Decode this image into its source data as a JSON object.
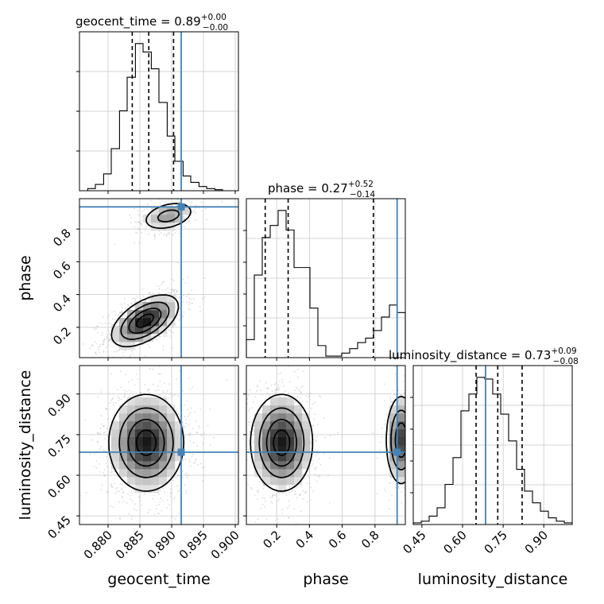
{
  "chart_data": {
    "type": "corner",
    "parameters": [
      "geocent_time",
      "phase",
      "luminosity_distance"
    ],
    "truth_color": "#4682b4",
    "contour_color": "#000000",
    "titles": [
      {
        "param": "geocent_time",
        "prefix": "geocent_time = ",
        "median": "0.89",
        "plus": "+0.00",
        "minus": "−0.00"
      },
      {
        "param": "phase",
        "prefix": "phase = ",
        "median": "0.27",
        "plus": "+0.52",
        "minus": "−0.14"
      },
      {
        "param": "luminosity_distance",
        "prefix": "luminosity_distance = ",
        "median": "0.73",
        "plus": "+0.09",
        "minus": "−0.08"
      }
    ],
    "axes": {
      "geocent_time": {
        "range": [
          0.8755,
          0.9005
        ],
        "ticks": [
          0.88,
          0.885,
          0.89,
          0.895,
          0.9
        ],
        "tick_labels": [
          "0.880",
          "0.885",
          "0.890",
          "0.895",
          "0.900"
        ],
        "label": "geocent_time"
      },
      "phase": {
        "range": [
          0.015,
          0.985
        ],
        "ticks": [
          0.2,
          0.4,
          0.6,
          0.8
        ],
        "tick_labels": [
          "0.2",
          "0.4",
          "0.6",
          "0.8"
        ],
        "label": "phase"
      },
      "luminosity_distance": {
        "range": [
          0.418,
          1.005
        ],
        "ticks": [
          0.45,
          0.6,
          0.75,
          0.9
        ],
        "tick_labels": [
          "0.45",
          "0.60",
          "0.75",
          "0.90"
        ],
        "label": "luminosity_distance"
      }
    },
    "truths": {
      "geocent_time": 0.8915,
      "phase": 0.935,
      "luminosity_distance": 0.685
    },
    "quantiles": {
      "geocent_time": [
        0.8838,
        0.8864,
        0.8903
      ],
      "phase": [
        0.13,
        0.27,
        0.79
      ],
      "luminosity_distance": [
        0.65,
        0.73,
        0.82
      ]
    },
    "histograms": {
      "geocent_time": {
        "edges": [
          0.8755,
          0.8768,
          0.878,
          0.8793,
          0.8805,
          0.8818,
          0.883,
          0.8843,
          0.8855,
          0.8868,
          0.888,
          0.8893,
          0.8905,
          0.8918,
          0.893,
          0.8943,
          0.8955,
          0.8968,
          0.898,
          0.8993,
          0.9005
        ],
        "counts": [
          0,
          1,
          3,
          8,
          20,
          38,
          54,
          70,
          66,
          58,
          42,
          26,
          14,
          7,
          4,
          2,
          1,
          0.5,
          0,
          0
        ]
      },
      "phase": {
        "edges": [
          0.015,
          0.0635,
          0.112,
          0.1605,
          0.209,
          0.2575,
          0.306,
          0.3545,
          0.403,
          0.4515,
          0.5,
          0.5485,
          0.597,
          0.6455,
          0.694,
          0.7425,
          0.791,
          0.8395,
          0.888,
          0.9365,
          0.985
        ],
        "counts": [
          12,
          55,
          80,
          88,
          98,
          85,
          60,
          60,
          33,
          8,
          1,
          1,
          3,
          6,
          10,
          13,
          18,
          27,
          35,
          30
        ]
      },
      "luminosity_distance": {
        "edges": [
          0.418,
          0.4474,
          0.4767,
          0.5061,
          0.5354,
          0.5648,
          0.5941,
          0.6235,
          0.6528,
          0.6822,
          0.7115,
          0.7409,
          0.7702,
          0.7996,
          0.8289,
          0.8583,
          0.8876,
          0.917,
          0.9463,
          0.9757,
          1.005
        ],
        "counts": [
          1,
          2,
          5,
          10,
          24,
          40,
          68,
          78,
          88,
          87,
          78,
          66,
          50,
          33,
          20,
          13,
          8,
          4,
          2,
          1
        ]
      }
    },
    "density_2d": [
      {
        "x": "geocent_time",
        "y": "phase",
        "blobs": [
          {
            "mx": 0.8858,
            "my": 0.24,
            "sx": 0.0025,
            "sy": 0.075,
            "rho": 0.55,
            "w": 0.8
          },
          {
            "mx": 0.8895,
            "my": 0.88,
            "sx": 0.0021,
            "sy": 0.045,
            "rho": 0.35,
            "w": 0.2
          }
        ]
      },
      {
        "x": "geocent_time",
        "y": "luminosity_distance",
        "blobs": [
          {
            "mx": 0.886,
            "my": 0.72,
            "sx": 0.0028,
            "sy": 0.085,
            "rho": 0.0,
            "w": 1.0
          }
        ]
      },
      {
        "x": "phase",
        "y": "luminosity_distance",
        "blobs": [
          {
            "mx": 0.23,
            "my": 0.72,
            "sx": 0.09,
            "sy": 0.085,
            "rho": 0.0,
            "w": 0.72
          },
          {
            "mx": 0.96,
            "my": 0.73,
            "sx": 0.045,
            "sy": 0.08,
            "rho": 0.0,
            "w": 0.28
          }
        ]
      }
    ]
  }
}
